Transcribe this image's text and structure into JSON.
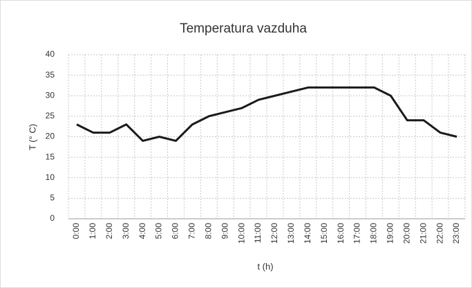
{
  "chart_data": {
    "type": "line",
    "title": "Temperatura vazduha",
    "x_label": "t (h)",
    "y_label": "T (° C)",
    "categories": [
      "0:00",
      "1:00",
      "2:00",
      "3:00",
      "4:00",
      "5:00",
      "6:00",
      "7:00",
      "8:00",
      "9:00",
      "10:00",
      "11:00",
      "12:00",
      "13:00",
      "14:00",
      "15:00",
      "16:00",
      "17:00",
      "18:00",
      "19:00",
      "20:00",
      "21:00",
      "22:00",
      "23:00"
    ],
    "series": [
      {
        "name": "T",
        "color": "#1a1a1a",
        "values": [
          23,
          21,
          21,
          23,
          19,
          20,
          19,
          23,
          25,
          26,
          27,
          29,
          30,
          31,
          32,
          32,
          32,
          32,
          32,
          30,
          24,
          24,
          21,
          20
        ]
      }
    ],
    "ylim": [
      0,
      40
    ],
    "yticks": [
      0,
      5,
      10,
      15,
      20,
      25,
      30,
      35,
      40
    ],
    "grid": true
  }
}
